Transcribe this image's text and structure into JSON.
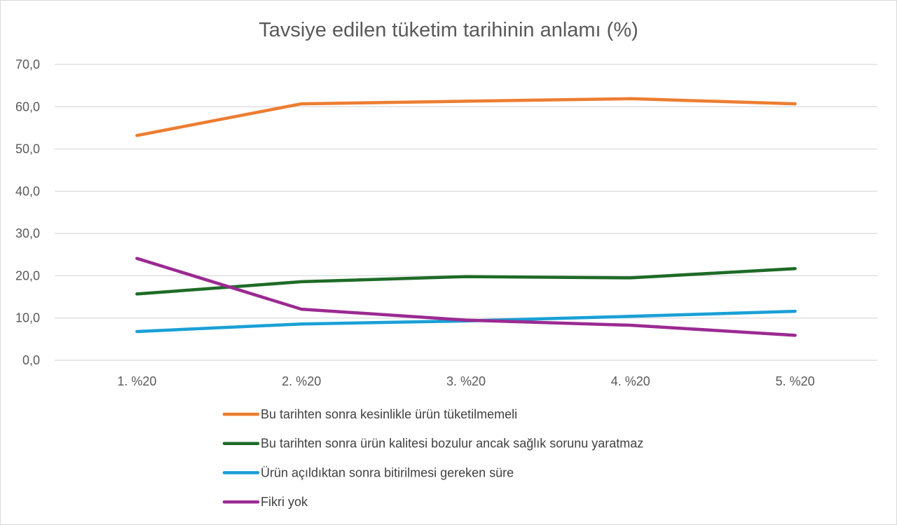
{
  "chart_data": {
    "type": "line",
    "title": "Tavsiye edilen tüketim tarihinin anlamı (%)",
    "xlabel": "",
    "ylabel": "",
    "categories": [
      "1. %20",
      "2. %20",
      "3. %20",
      "4. %20",
      "5. %20"
    ],
    "ylim": [
      0,
      70
    ],
    "yticks": [
      "0,0",
      "10,0",
      "20,0",
      "30,0",
      "40,0",
      "50,0",
      "60,0",
      "70,0"
    ],
    "grid": true,
    "legend_position": "bottom",
    "series": [
      {
        "name": "Bu tarihten sonra kesinlikle ürün tüketilmemeli",
        "color": "#ED7D31",
        "values": [
          53.2,
          60.7,
          61.3,
          61.9,
          60.7
        ]
      },
      {
        "name": "Bu tarihten sonra ürün kalitesi bozulur ancak sağlık sorunu yaratmaz",
        "color": "#1E6B27",
        "values": [
          15.7,
          18.6,
          19.8,
          19.5,
          21.7
        ]
      },
      {
        "name": "Ürün açıldıktan sonra bitirilmesi gereken süre",
        "color": "#1AA0D6",
        "values": [
          6.8,
          8.6,
          9.3,
          10.4,
          11.6
        ]
      },
      {
        "name": "Fikri yok",
        "color": "#9B2A92",
        "values": [
          24.1,
          12.1,
          9.5,
          8.3,
          5.9
        ]
      }
    ]
  }
}
